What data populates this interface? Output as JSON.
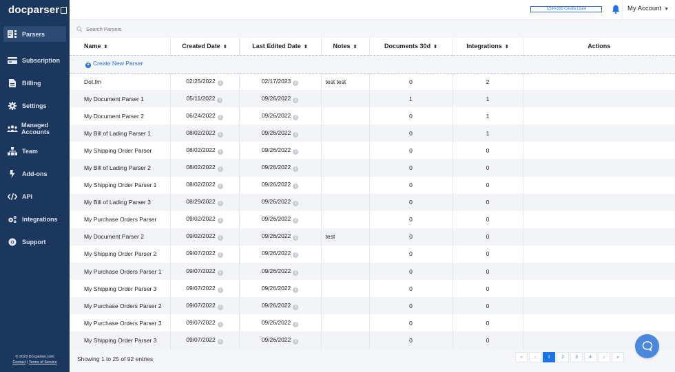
{
  "app": {
    "logo": "docparser"
  },
  "sidebar": {
    "items": [
      {
        "label": "Parsers",
        "icon": "parsers-icon",
        "active": true
      },
      {
        "label": "Subscription",
        "icon": "credit-card-icon"
      },
      {
        "label": "Billing",
        "icon": "document-icon"
      },
      {
        "label": "Settings",
        "icon": "gear-icon"
      },
      {
        "label": "Managed Accounts",
        "icon": "users-icon"
      },
      {
        "label": "Team",
        "icon": "sitemap-icon"
      },
      {
        "label": "Add-ons",
        "icon": "bolt-icon"
      },
      {
        "label": "API",
        "icon": "code-icon"
      },
      {
        "label": "Integrations",
        "icon": "cogs-icon"
      },
      {
        "label": "Support",
        "icon": "life-ring-icon"
      }
    ],
    "footer": {
      "copyright": "© 2023 Docparser.com",
      "contact": "Contact",
      "separator": "|",
      "terms": "Terms of Service"
    }
  },
  "topbar": {
    "credits": "1/240,000 Credits Used",
    "account": "My Account"
  },
  "search": {
    "placeholder": "Search Parsers"
  },
  "table": {
    "columns": [
      "Name",
      "Created Date",
      "Last Edited Date",
      "Notes",
      "Documents 30d",
      "Integrations",
      "Actions"
    ],
    "create_label": "Create New Parser",
    "rows": [
      {
        "name": "Dot.fm",
        "created": "02/25/2022",
        "edited": "02/17/2023",
        "notes": "test test",
        "docs": "0",
        "integrations": "2"
      },
      {
        "name": "My Document Parser 1",
        "created": "05/11/2022",
        "edited": "09/26/2022",
        "notes": "",
        "docs": "1",
        "integrations": "1"
      },
      {
        "name": "My Document Parser 2",
        "created": "06/24/2022",
        "edited": "09/26/2022",
        "notes": "",
        "docs": "0",
        "integrations": "1"
      },
      {
        "name": "My Bill of Lading Parser 1",
        "created": "08/02/2022",
        "edited": "09/26/2022",
        "notes": "",
        "docs": "0",
        "integrations": "1"
      },
      {
        "name": "My Shipping Order Parser",
        "created": "08/02/2022",
        "edited": "09/26/2022",
        "notes": "",
        "docs": "0",
        "integrations": "0"
      },
      {
        "name": "My Bill of Lading Parser 2",
        "created": "08/02/2022",
        "edited": "09/26/2022",
        "notes": "",
        "docs": "0",
        "integrations": "0"
      },
      {
        "name": "My Shipping Order Parser 1",
        "created": "08/02/2022",
        "edited": "09/26/2022",
        "notes": "",
        "docs": "0",
        "integrations": "0"
      },
      {
        "name": "My Bill of Lading Parser 3",
        "created": "08/29/2022",
        "edited": "09/26/2022",
        "notes": "",
        "docs": "0",
        "integrations": "0"
      },
      {
        "name": "My Purchase Orders Parser",
        "created": "09/02/2022",
        "edited": "09/26/2022",
        "notes": "",
        "docs": "0",
        "integrations": "0"
      },
      {
        "name": "My Document Parser 2",
        "created": "09/02/2022",
        "edited": "09/26/2022",
        "notes": "test",
        "docs": "0",
        "integrations": "0"
      },
      {
        "name": "My Shipping Order Parser 2",
        "created": "09/07/2022",
        "edited": "09/26/2022",
        "notes": "",
        "docs": "0",
        "integrations": "0"
      },
      {
        "name": "My Purchase Orders Parser 1",
        "created": "09/07/2022",
        "edited": "09/26/2022",
        "notes": "",
        "docs": "0",
        "integrations": "0"
      },
      {
        "name": "My Shipping Order Parser 3",
        "created": "09/07/2022",
        "edited": "09/26/2022",
        "notes": "",
        "docs": "0",
        "integrations": "0"
      },
      {
        "name": "My Purchase Orders Parser 2",
        "created": "09/07/2022",
        "edited": "09/26/2022",
        "notes": "",
        "docs": "0",
        "integrations": "0"
      },
      {
        "name": "My Purchase Orders Parser 3",
        "created": "09/07/2022",
        "edited": "09/26/2022",
        "notes": "",
        "docs": "0",
        "integrations": "0"
      },
      {
        "name": "My Shipping Order Parser 3",
        "created": "09/07/2022",
        "edited": "09/26/2022",
        "notes": "",
        "docs": "0",
        "integrations": "0"
      }
    ]
  },
  "footer": {
    "entries": "Showing 1 to 25 of 92 entries",
    "pager": {
      "first": "«",
      "prev": "‹",
      "pages": [
        "1",
        "2",
        "3",
        "4"
      ],
      "active": "1",
      "next": "›",
      "last": "»"
    }
  },
  "colors": {
    "sidebar": "#1c375e",
    "accent": "#1a73e8",
    "link": "#2c6fdc",
    "chat": "#4a88e0"
  }
}
